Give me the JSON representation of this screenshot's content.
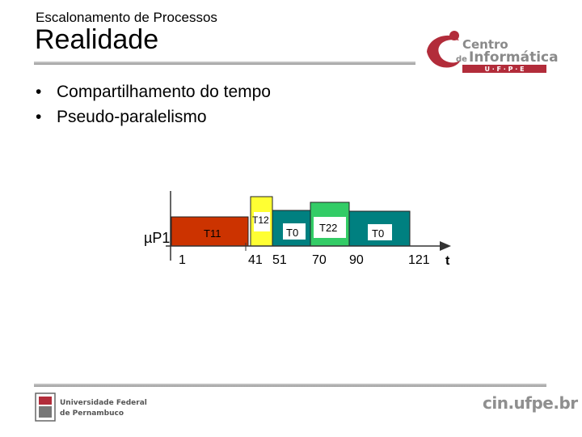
{
  "header": {
    "subtitle": "Escalonamento de Processos",
    "title": "Realidade"
  },
  "logo": {
    "line1": "Centro",
    "line2_prefix": "de",
    "line2": "Informática",
    "line3": "U · F · P · E"
  },
  "bullets": [
    "Compartilhamento do tempo",
    "Pseudo-paralelismo"
  ],
  "diagram": {
    "processor_label": "µP1",
    "axis_label": "t",
    "ticks": [
      "1",
      "41",
      "51",
      "70",
      "90",
      "121"
    ],
    "blocks": [
      {
        "label": "T11",
        "color": "#cc3300"
      },
      {
        "label": "T12",
        "color": "#ffff33"
      },
      {
        "label": "T0",
        "color": "#008080"
      },
      {
        "label": "T22",
        "color": "#33cc66"
      },
      {
        "label": "T0",
        "color": "#008080"
      }
    ]
  },
  "footer": {
    "ufpe_line1": "Universidade Federal",
    "ufpe_line2": "de Pernambuco",
    "site": "cin.ufpe.br"
  }
}
